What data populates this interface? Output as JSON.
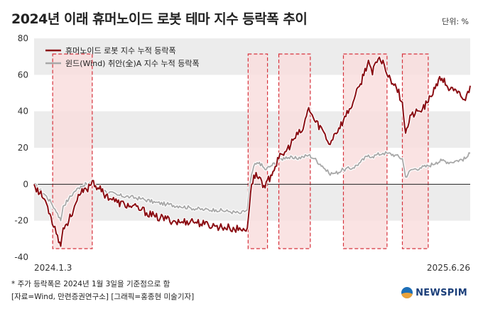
{
  "header": {
    "title": "2024년 이래 휴머노이드 로봇 테마 지수 등락폭 추이",
    "unit": "단위: %"
  },
  "footer": {
    "note": "* 주가 등락폭은 2024년 1월 3일을 기준점으로 함",
    "source": "[자료=Wind, 만련증권연구소] [그래픽=홍종현 미술기자]"
  },
  "logo": {
    "text": "NEWSPIM"
  },
  "chart_data": {
    "type": "line",
    "ylim": [
      -40,
      80
    ],
    "yticks": [
      -40,
      -20,
      0,
      20,
      40,
      60,
      80
    ],
    "xlim": [
      "2024-01-03",
      "2025-06-26"
    ],
    "x_labels": [
      "2024.1.3",
      "2025.6.26"
    ],
    "grid": "alternating horizontal bands",
    "legend_position": "top-left",
    "colors": {
      "humanoid": "#8b0d13",
      "wind": "#a8a8a8",
      "highlight_fill": "#f9dede",
      "highlight_border": "#d7323c",
      "band": "#ececec"
    },
    "highlight_periods": [
      {
        "start": "2024-01-26",
        "end": "2024-03-15"
      },
      {
        "start": "2024-09-24",
        "end": "2024-10-18"
      },
      {
        "start": "2024-11-01",
        "end": "2024-12-10"
      },
      {
        "start": "2025-01-20",
        "end": "2025-03-15"
      },
      {
        "start": "2025-04-03",
        "end": "2025-05-05"
      }
    ],
    "series": [
      {
        "name": "휴머노이드 로봇 지수 누적 등락폭",
        "points": [
          [
            "2024-01-03",
            0
          ],
          [
            "2024-01-10",
            -5
          ],
          [
            "2024-01-17",
            -9
          ],
          [
            "2024-01-24",
            -18
          ],
          [
            "2024-02-01",
            -28
          ],
          [
            "2024-02-05",
            -34
          ],
          [
            "2024-02-08",
            -24
          ],
          [
            "2024-02-15",
            -20
          ],
          [
            "2024-02-22",
            -12
          ],
          [
            "2024-03-01",
            -5
          ],
          [
            "2024-03-08",
            -3
          ],
          [
            "2024-03-15",
            2
          ],
          [
            "2024-03-22",
            -2
          ],
          [
            "2024-04-01",
            -6
          ],
          [
            "2024-04-15",
            -10
          ],
          [
            "2024-05-01",
            -12
          ],
          [
            "2024-05-15",
            -14
          ],
          [
            "2024-06-01",
            -18
          ],
          [
            "2024-06-15",
            -19
          ],
          [
            "2024-07-01",
            -21
          ],
          [
            "2024-07-15",
            -20
          ],
          [
            "2024-08-01",
            -22
          ],
          [
            "2024-08-15",
            -23
          ],
          [
            "2024-09-01",
            -24
          ],
          [
            "2024-09-15",
            -25
          ],
          [
            "2024-09-23",
            -24
          ],
          [
            "2024-09-27",
            -5
          ],
          [
            "2024-10-01",
            5
          ],
          [
            "2024-10-08",
            4
          ],
          [
            "2024-10-15",
            -2
          ],
          [
            "2024-10-22",
            5
          ],
          [
            "2024-11-01",
            14
          ],
          [
            "2024-11-10",
            18
          ],
          [
            "2024-11-20",
            25
          ],
          [
            "2024-12-01",
            30
          ],
          [
            "2024-12-08",
            42
          ],
          [
            "2024-12-15",
            35
          ],
          [
            "2024-12-25",
            30
          ],
          [
            "2025-01-02",
            22
          ],
          [
            "2025-01-10",
            28
          ],
          [
            "2025-01-20",
            35
          ],
          [
            "2025-02-01",
            45
          ],
          [
            "2025-02-10",
            55
          ],
          [
            "2025-02-20",
            68
          ],
          [
            "2025-02-25",
            60
          ],
          [
            "2025-03-01",
            67
          ],
          [
            "2025-03-10",
            68
          ],
          [
            "2025-03-15",
            60
          ],
          [
            "2025-03-25",
            55
          ],
          [
            "2025-04-03",
            45
          ],
          [
            "2025-04-07",
            28
          ],
          [
            "2025-04-14",
            38
          ],
          [
            "2025-04-25",
            40
          ],
          [
            "2025-05-05",
            45
          ],
          [
            "2025-05-15",
            55
          ],
          [
            "2025-05-22",
            58
          ],
          [
            "2025-06-01",
            52
          ],
          [
            "2025-06-10",
            50
          ],
          [
            "2025-06-20",
            46
          ],
          [
            "2025-06-26",
            54
          ]
        ]
      },
      {
        "name": "윈드(Wind) 취안(全)A 지수 누적 등락폭",
        "points": [
          [
            "2024-01-03",
            0
          ],
          [
            "2024-01-10",
            -3
          ],
          [
            "2024-01-17",
            -6
          ],
          [
            "2024-01-24",
            -10
          ],
          [
            "2024-02-01",
            -16
          ],
          [
            "2024-02-05",
            -20
          ],
          [
            "2024-02-08",
            -12
          ],
          [
            "2024-02-15",
            -8
          ],
          [
            "2024-02-22",
            -4
          ],
          [
            "2024-03-01",
            -1
          ],
          [
            "2024-03-08",
            0
          ],
          [
            "2024-03-15",
            1
          ],
          [
            "2024-03-22",
            -2
          ],
          [
            "2024-04-01",
            -4
          ],
          [
            "2024-04-15",
            -6
          ],
          [
            "2024-05-01",
            -7
          ],
          [
            "2024-05-15",
            -8
          ],
          [
            "2024-06-01",
            -10
          ],
          [
            "2024-06-15",
            -11
          ],
          [
            "2024-07-01",
            -12
          ],
          [
            "2024-07-15",
            -13
          ],
          [
            "2024-08-01",
            -14
          ],
          [
            "2024-08-15",
            -14
          ],
          [
            "2024-09-01",
            -15
          ],
          [
            "2024-09-15",
            -16
          ],
          [
            "2024-09-23",
            -14
          ],
          [
            "2024-09-27",
            2
          ],
          [
            "2024-10-01",
            10
          ],
          [
            "2024-10-08",
            12
          ],
          [
            "2024-10-15",
            8
          ],
          [
            "2024-10-22",
            10
          ],
          [
            "2024-11-01",
            13
          ],
          [
            "2024-11-10",
            15
          ],
          [
            "2024-11-20",
            14
          ],
          [
            "2024-12-01",
            15
          ],
          [
            "2024-12-08",
            16
          ],
          [
            "2024-12-15",
            14
          ],
          [
            "2024-12-25",
            10
          ],
          [
            "2025-01-02",
            6
          ],
          [
            "2025-01-10",
            6
          ],
          [
            "2025-01-20",
            8
          ],
          [
            "2025-02-01",
            9
          ],
          [
            "2025-02-10",
            12
          ],
          [
            "2025-02-20",
            16
          ],
          [
            "2025-02-25",
            15
          ],
          [
            "2025-03-01",
            16
          ],
          [
            "2025-03-10",
            17
          ],
          [
            "2025-03-15",
            17
          ],
          [
            "2025-03-25",
            16
          ],
          [
            "2025-04-03",
            14
          ],
          [
            "2025-04-07",
            4
          ],
          [
            "2025-04-14",
            8
          ],
          [
            "2025-04-25",
            9
          ],
          [
            "2025-05-05",
            10
          ],
          [
            "2025-05-15",
            12
          ],
          [
            "2025-05-22",
            13
          ],
          [
            "2025-06-01",
            12
          ],
          [
            "2025-06-10",
            13
          ],
          [
            "2025-06-20",
            14
          ],
          [
            "2025-06-26",
            17
          ]
        ]
      }
    ]
  }
}
